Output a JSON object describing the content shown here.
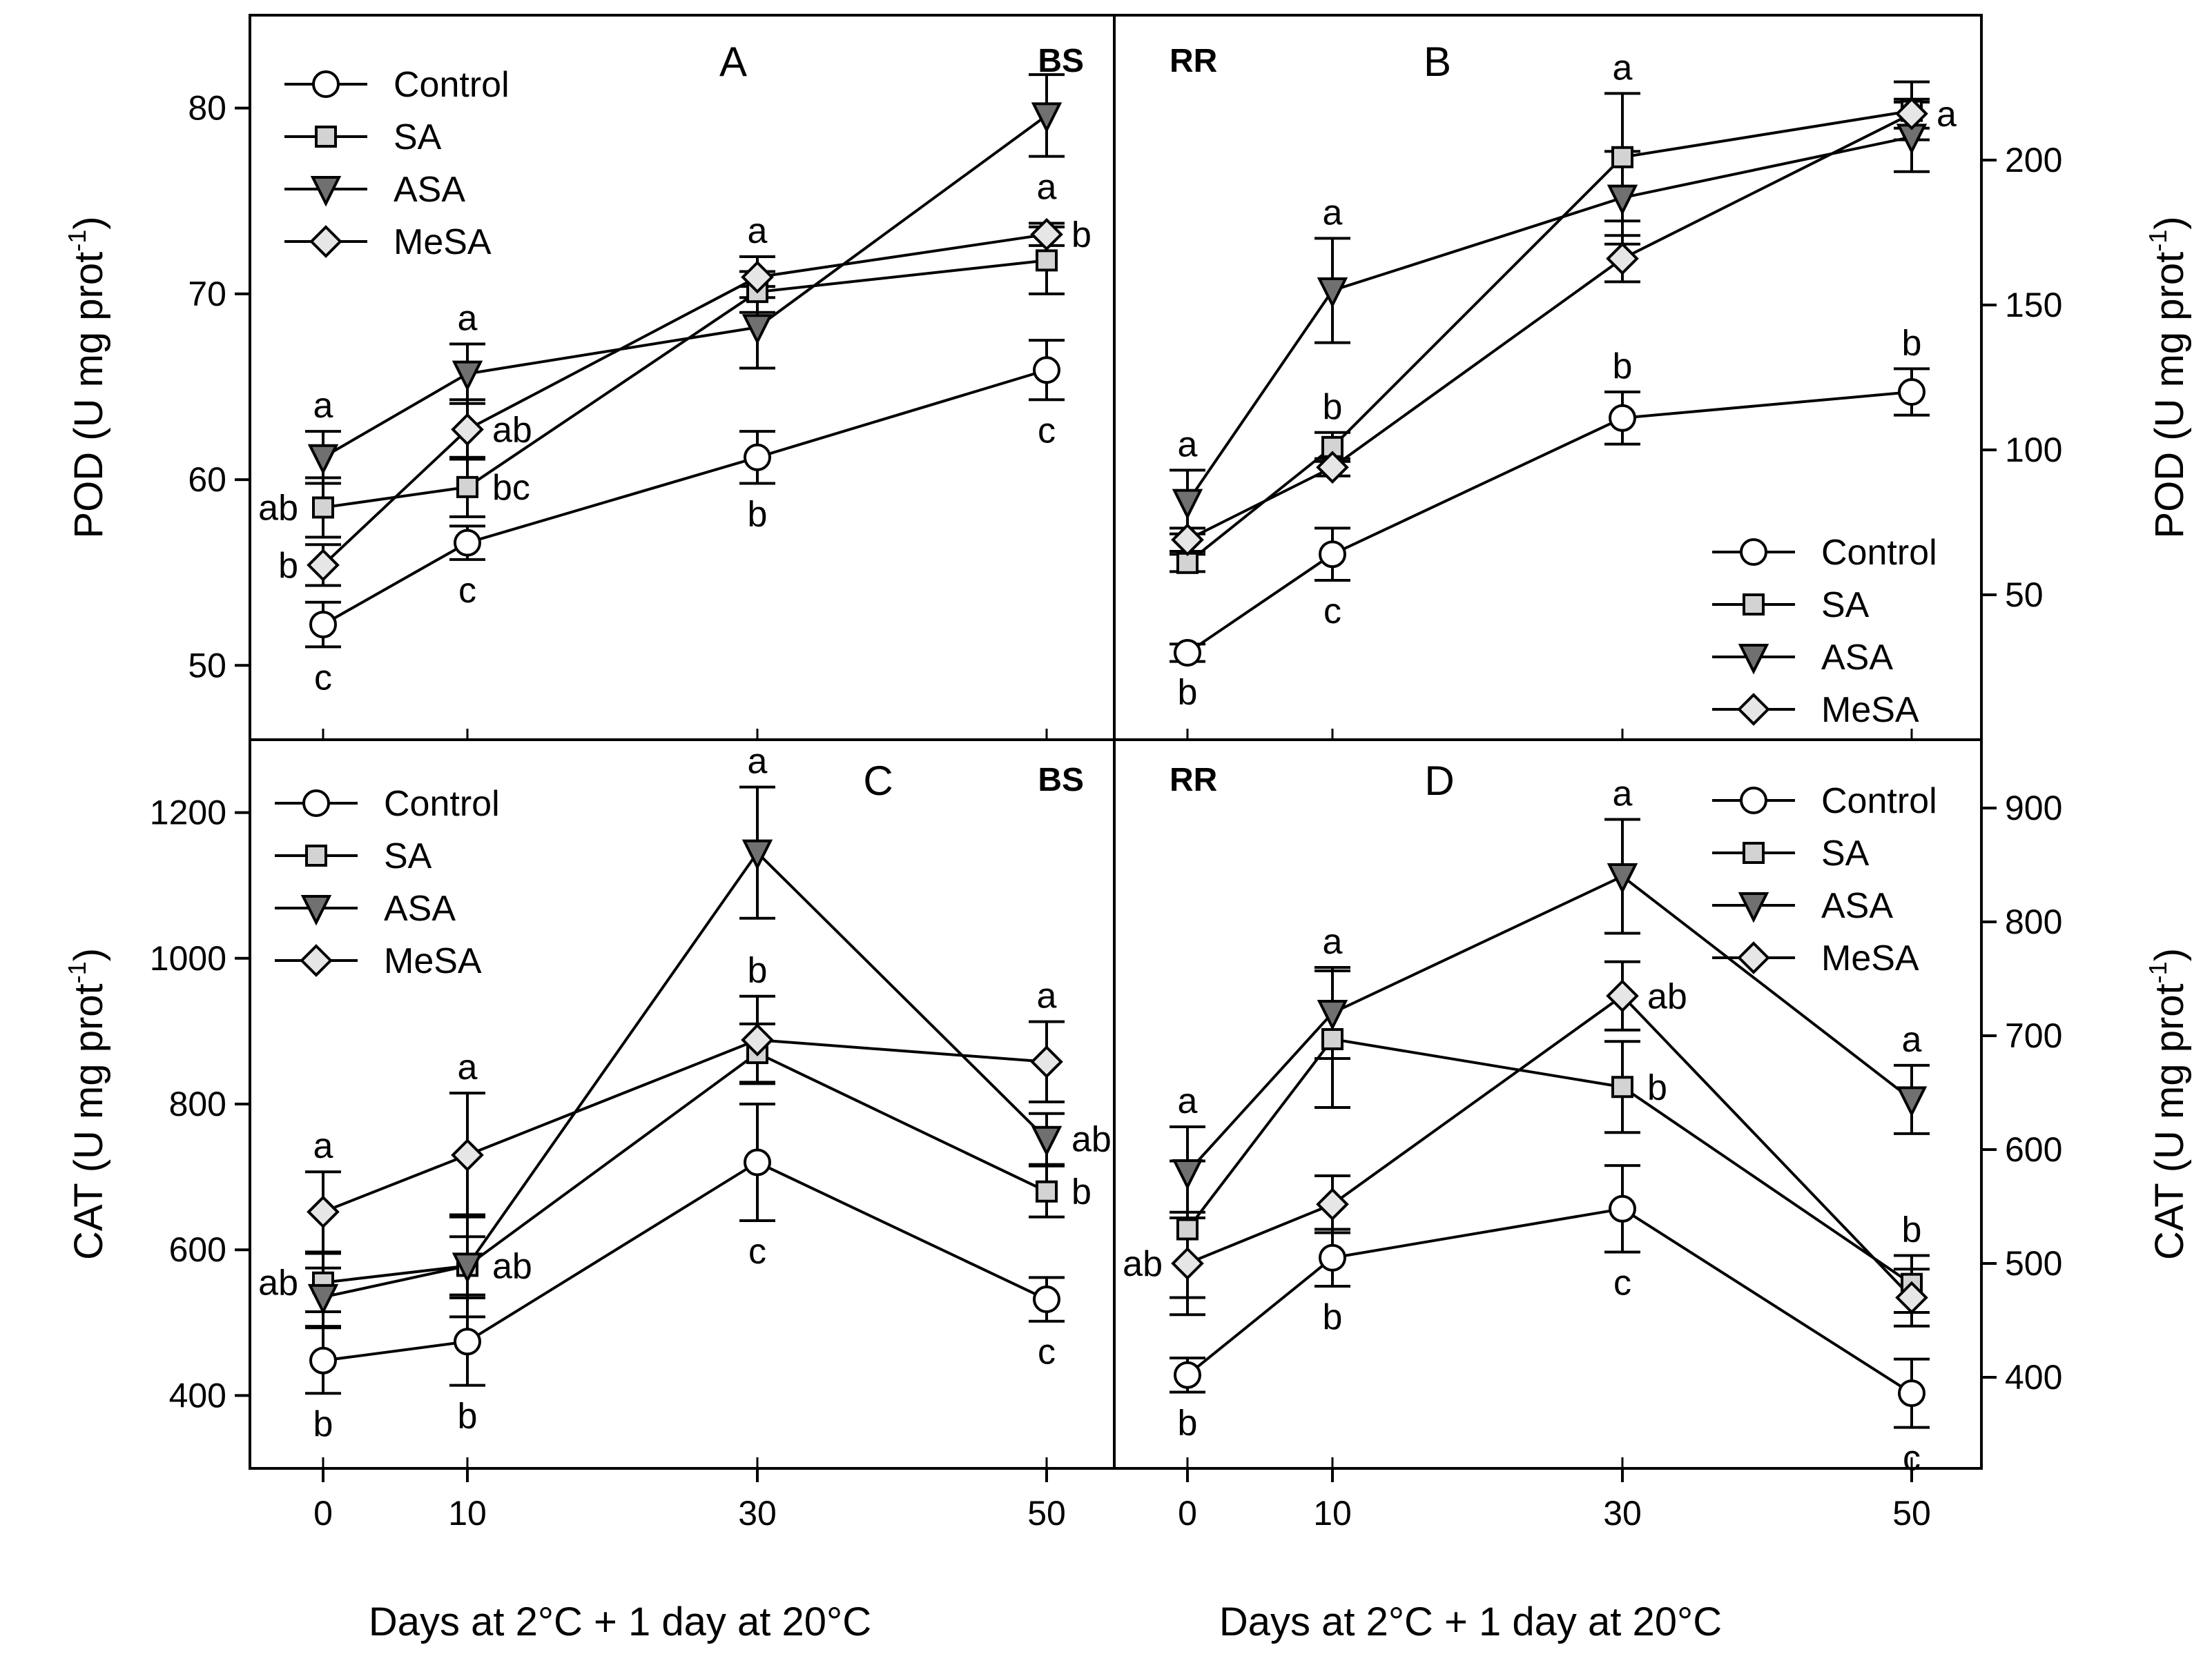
{
  "x_axis_label": "Days at 2°C + 1 day at 20°C",
  "x_categories": [
    "0",
    "10",
    "30",
    "50"
  ],
  "series_styles": {
    "Control": {
      "marker": "circle",
      "fill": "#ffffff"
    },
    "SA": {
      "marker": "square",
      "fill": "#d3d3d3"
    },
    "ASA": {
      "marker": "triangle-down",
      "fill": "#707070"
    },
    "MeSA": {
      "marker": "diamond",
      "fill": "#e6e6e6"
    }
  },
  "chart_data": [
    {
      "id": "A",
      "panel_letter": "A",
      "cultivar": "BS",
      "type": "line",
      "ylabel": "POD (U mg prot",
      "ylabel_sup": "-1",
      "ylabel_close": ")",
      "ylim": [
        46,
        85
      ],
      "yticks": [
        50,
        60,
        70,
        80
      ],
      "y_side": "left",
      "x": [
        0,
        10,
        30,
        50
      ],
      "legend": {
        "position": "top-left",
        "entries": [
          "Control",
          "SA",
          "ASA",
          "MeSA"
        ]
      },
      "series": [
        {
          "name": "Control",
          "values": [
            52.2,
            56.6,
            61.2,
            65.9
          ],
          "errors": [
            1.2,
            0.9,
            1.4,
            1.6
          ]
        },
        {
          "name": "SA",
          "values": [
            58.5,
            59.6,
            70.1,
            71.8
          ],
          "errors": [
            1.6,
            1.6,
            1.1,
            1.8
          ]
        },
        {
          "name": "ASA",
          "values": [
            61.2,
            65.7,
            68.2,
            79.6
          ],
          "errors": [
            1.4,
            1.6,
            2.2,
            2.2
          ]
        },
        {
          "name": "MeSA",
          "values": [
            55.4,
            62.7,
            70.9,
            73.2
          ],
          "errors": [
            1.1,
            1.6,
            1.1,
            0.6
          ]
        }
      ],
      "annotations": [
        {
          "text": "c",
          "x": 0,
          "series": "Control",
          "pos": "below"
        },
        {
          "text": "b",
          "x": 0,
          "series": "MeSA",
          "pos": "left"
        },
        {
          "text": "ab",
          "x": 0,
          "series": "SA",
          "pos": "left"
        },
        {
          "text": "a",
          "x": 0,
          "series": "ASA",
          "pos": "above"
        },
        {
          "text": "c",
          "x": 10,
          "series": "Control",
          "pos": "below"
        },
        {
          "text": "bc",
          "x": 10,
          "series": "SA",
          "pos": "right"
        },
        {
          "text": "ab",
          "x": 10,
          "series": "MeSA",
          "pos": "right"
        },
        {
          "text": "a",
          "x": 10,
          "series": "ASA",
          "pos": "above"
        },
        {
          "text": "b",
          "x": 30,
          "series": "Control",
          "pos": "below"
        },
        {
          "text": "a",
          "x": 30,
          "series": "MeSA",
          "pos": "above"
        },
        {
          "text": "c",
          "x": 50,
          "series": "Control",
          "pos": "below"
        },
        {
          "text": "b",
          "x": 50,
          "series": "MeSA",
          "pos": "right"
        },
        {
          "text": "a",
          "x": 50,
          "series": "ASA",
          "pos": "below"
        }
      ]
    },
    {
      "id": "B",
      "panel_letter": "B",
      "cultivar": "RR",
      "type": "line",
      "ylabel": "POD (U mg prot",
      "ylabel_sup": "-1",
      "ylabel_close": ")",
      "ylim": [
        0,
        250
      ],
      "yticks": [
        50,
        100,
        150,
        200
      ],
      "y_side": "right",
      "x": [
        0,
        10,
        30,
        50
      ],
      "legend": {
        "position": "bottom-right",
        "entries": [
          "Control",
          "SA",
          "ASA",
          "MeSA"
        ]
      },
      "series": [
        {
          "name": "Control",
          "values": [
            30,
            64,
            111,
            120
          ],
          "errors": [
            3,
            9,
            9,
            8
          ]
        },
        {
          "name": "SA",
          "values": [
            61,
            101,
            201,
            217
          ],
          "errors": [
            3,
            5,
            22,
            10
          ]
        },
        {
          "name": "ASA",
          "values": [
            82,
            155,
            187,
            208
          ],
          "errors": [
            11,
            18,
            16,
            12
          ]
        },
        {
          "name": "MeSA",
          "values": [
            69,
            94,
            166,
            216
          ],
          "errors": [
            4,
            3,
            8,
            5
          ]
        }
      ],
      "annotations": [
        {
          "text": "b",
          "x": 0,
          "series": "Control",
          "pos": "below"
        },
        {
          "text": "a",
          "x": 0,
          "series": "ASA",
          "pos": "above"
        },
        {
          "text": "c",
          "x": 10,
          "series": "Control",
          "pos": "below"
        },
        {
          "text": "b",
          "x": 10,
          "series": "SA",
          "pos": "above"
        },
        {
          "text": "a",
          "x": 10,
          "series": "ASA",
          "pos": "above"
        },
        {
          "text": "b",
          "x": 30,
          "series": "Control",
          "pos": "above"
        },
        {
          "text": "a",
          "x": 30,
          "series": "SA",
          "pos": "above"
        },
        {
          "text": "b",
          "x": 50,
          "series": "Control",
          "pos": "above"
        },
        {
          "text": "a",
          "x": 50,
          "series": "MeSA",
          "pos": "right"
        }
      ]
    },
    {
      "id": "C",
      "panel_letter": "C",
      "cultivar": "BS",
      "type": "line",
      "ylabel": "CAT (U mg prot",
      "ylabel_sup": "-1",
      "ylabel_close": ")",
      "ylim": [
        300,
        1300
      ],
      "yticks": [
        400,
        600,
        800,
        1000,
        1200
      ],
      "y_side": "left",
      "x": [
        0,
        10,
        30,
        50
      ],
      "legend": {
        "position": "top-left",
        "entries": [
          "Control",
          "SA",
          "ASA",
          "MeSA"
        ]
      },
      "series": [
        {
          "name": "Control",
          "values": [
            448,
            474,
            720,
            532
          ],
          "errors": [
            45,
            60,
            80,
            30
          ]
        },
        {
          "name": "SA",
          "values": [
            555,
            578,
            870,
            680
          ],
          "errors": [
            40,
            70,
            40,
            35
          ]
        },
        {
          "name": "ASA",
          "values": [
            535,
            578,
            1145,
            752
          ],
          "errors": [
            40,
            40,
            90,
            35
          ]
        },
        {
          "name": "MeSA",
          "values": [
            652,
            730,
            888,
            858
          ],
          "errors": [
            55,
            85,
            60,
            55
          ]
        }
      ],
      "annotations": [
        {
          "text": "b",
          "x": 0,
          "series": "Control",
          "pos": "below"
        },
        {
          "text": "ab",
          "x": 0,
          "series": "SA",
          "pos": "left"
        },
        {
          "text": "a",
          "x": 0,
          "series": "MeSA",
          "pos": "above"
        },
        {
          "text": "b",
          "x": 10,
          "series": "Control",
          "pos": "below"
        },
        {
          "text": "ab",
          "x": 10,
          "series": "SA",
          "pos": "right"
        },
        {
          "text": "a",
          "x": 10,
          "series": "MeSA",
          "pos": "above"
        },
        {
          "text": "c",
          "x": 30,
          "series": "Control",
          "pos": "below"
        },
        {
          "text": "b",
          "x": 30,
          "series": "MeSA",
          "pos": "above"
        },
        {
          "text": "a",
          "x": 30,
          "series": "ASA",
          "pos": "above"
        },
        {
          "text": "c",
          "x": 50,
          "series": "Control",
          "pos": "below"
        },
        {
          "text": "b",
          "x": 50,
          "series": "SA",
          "pos": "right"
        },
        {
          "text": "ab",
          "x": 50,
          "series": "ASA",
          "pos": "right"
        },
        {
          "text": "a",
          "x": 50,
          "series": "MeSA",
          "pos": "above"
        }
      ]
    },
    {
      "id": "D",
      "panel_letter": "D",
      "cultivar": "RR",
      "type": "line",
      "ylabel": "CAT (U mg prot",
      "ylabel_sup": "-1",
      "ylabel_close": ")",
      "ylim": [
        320,
        960
      ],
      "yticks": [
        400,
        500,
        600,
        700,
        800,
        900
      ],
      "y_side": "right",
      "x": [
        0,
        10,
        30,
        50
      ],
      "legend": {
        "position": "top-right",
        "entries": [
          "Control",
          "SA",
          "ASA",
          "MeSA"
        ]
      },
      "series": [
        {
          "name": "Control",
          "values": [
            402,
            505,
            548,
            386
          ],
          "errors": [
            15,
            25,
            38,
            30
          ]
        },
        {
          "name": "SA",
          "values": [
            530,
            697,
            655,
            482
          ],
          "errors": [
            60,
            60,
            40,
            25
          ]
        },
        {
          "name": "ASA",
          "values": [
            580,
            720,
            840,
            644
          ],
          "errors": [
            40,
            40,
            50,
            30
          ]
        },
        {
          "name": "MeSA",
          "values": [
            500,
            552,
            735,
            470
          ],
          "errors": [
            45,
            25,
            30,
            25
          ]
        }
      ],
      "annotations": [
        {
          "text": "b",
          "x": 0,
          "series": "Control",
          "pos": "below"
        },
        {
          "text": "ab",
          "x": 0,
          "series": "MeSA",
          "pos": "left"
        },
        {
          "text": "a",
          "x": 0,
          "series": "ASA",
          "pos": "above"
        },
        {
          "text": "b",
          "x": 10,
          "series": "Control",
          "pos": "below"
        },
        {
          "text": "a",
          "x": 10,
          "series": "ASA",
          "pos": "above"
        },
        {
          "text": "c",
          "x": 30,
          "series": "Control",
          "pos": "below"
        },
        {
          "text": "b",
          "x": 30,
          "series": "SA",
          "pos": "right"
        },
        {
          "text": "ab",
          "x": 30,
          "series": "MeSA",
          "pos": "right"
        },
        {
          "text": "a",
          "x": 30,
          "series": "ASA",
          "pos": "above"
        },
        {
          "text": "c",
          "x": 50,
          "series": "Control",
          "pos": "below"
        },
        {
          "text": "b",
          "x": 50,
          "series": "SA",
          "pos": "above"
        },
        {
          "text": "a",
          "x": 50,
          "series": "ASA",
          "pos": "above"
        }
      ]
    }
  ]
}
